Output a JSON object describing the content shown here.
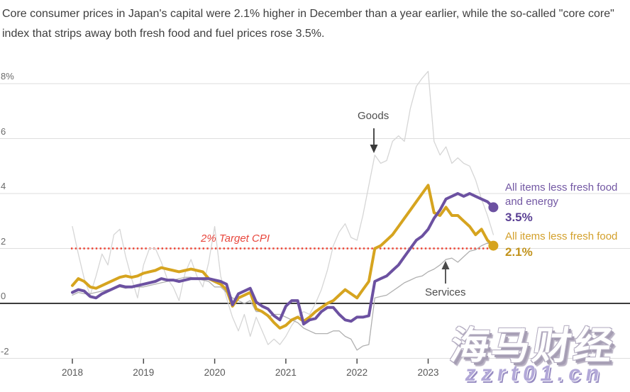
{
  "header": {
    "text": "Core consumer prices in Japan's capital were 2.1% higher in December than a year earlier, while the so-called \"core core\" index that strips away both fresh food and fuel prices rose 3.5%."
  },
  "chart_data": {
    "type": "line",
    "x_monthly_range": "2018-01 to 2023-12",
    "x_tick_labels": [
      "2018",
      "2019",
      "2020",
      "2021",
      "2022",
      "2023"
    ],
    "y_axis": {
      "ticks": [
        8,
        6,
        4,
        2,
        0,
        -2
      ],
      "tick_labels": [
        "8%",
        "6",
        "4",
        "2",
        "0",
        "-2"
      ],
      "unit": "%"
    },
    "ylim": [
      -2.7,
      8.6
    ],
    "grid": "horizontal",
    "colors": {
      "grid": "#dedede",
      "zero_line": "#3d3d3d",
      "tick": "#4a4a4a"
    },
    "target_line": {
      "label": "2% Target CPI",
      "value": 2,
      "color": "#ee4434"
    },
    "series": [
      {
        "name": "Goods",
        "color": "#d6d6d6",
        "width": 1.3,
        "end_dot": false,
        "values": [
          2.8,
          1.8,
          0.9,
          0.3,
          1.0,
          1.8,
          1.4,
          2.5,
          2.7,
          1.7,
          0.9,
          0.2,
          1.4,
          2.0,
          2.0,
          1.5,
          0.9,
          0.6,
          0.1,
          1.1,
          1.6,
          1.0,
          0.6,
          1.5,
          2.8,
          1.0,
          0.2,
          -0.5,
          -1.0,
          -0.4,
          -1.2,
          -0.5,
          -1.0,
          -1.5,
          -1.3,
          -1.5,
          -1.2,
          -0.8,
          -0.5,
          -0.3,
          -0.4,
          0.0,
          0.5,
          1.2,
          2.1,
          2.6,
          2.9,
          2.4,
          2.3,
          3.2,
          4.3,
          5.4,
          5.1,
          5.2,
          5.9,
          6.1,
          5.9,
          7.1,
          7.9,
          8.2,
          8.45,
          5.9,
          5.4,
          5.7,
          5.1,
          5.3,
          5.1,
          5.0,
          4.5,
          3.8,
          3.2,
          2.5
        ]
      },
      {
        "name": "Services",
        "color": "#b0b0b0",
        "width": 1.3,
        "end_dot": false,
        "values": [
          0.3,
          0.4,
          0.35,
          0.35,
          0.4,
          0.45,
          0.5,
          0.55,
          0.6,
          0.55,
          0.6,
          0.6,
          0.6,
          0.65,
          0.7,
          0.75,
          0.8,
          0.85,
          0.9,
          0.95,
          0.95,
          0.9,
          0.85,
          0.8,
          0.6,
          0.6,
          0.4,
          0.2,
          0.1,
          0.0,
          0.1,
          -0.3,
          -0.3,
          -0.5,
          -0.4,
          -0.4,
          -0.5,
          -0.6,
          -0.7,
          -0.9,
          -1.0,
          -1.1,
          -1.1,
          -1.1,
          -1.0,
          -1.0,
          -1.2,
          -1.3,
          -1.7,
          -1.55,
          -1.5,
          0.2,
          0.25,
          0.3,
          0.45,
          0.6,
          0.75,
          0.85,
          0.95,
          1.0,
          1.15,
          1.25,
          1.4,
          1.6,
          1.65,
          1.5,
          1.7,
          1.9,
          1.95,
          2.1,
          2.2,
          2.1
        ]
      },
      {
        "name": "All items less fresh food",
        "color": "#d6a41f",
        "width": 4,
        "end_dot": true,
        "end_value_label": "2.1%",
        "values": [
          0.65,
          0.9,
          0.8,
          0.6,
          0.55,
          0.65,
          0.75,
          0.85,
          0.95,
          1.0,
          0.95,
          1.0,
          1.1,
          1.15,
          1.2,
          1.3,
          1.25,
          1.2,
          1.15,
          1.2,
          1.25,
          1.2,
          1.15,
          0.9,
          0.8,
          0.7,
          0.5,
          -0.1,
          0.2,
          0.3,
          0.4,
          -0.2,
          -0.3,
          -0.45,
          -0.7,
          -0.9,
          -0.8,
          -0.6,
          -0.5,
          -0.65,
          -0.5,
          -0.3,
          -0.15,
          0.0,
          0.1,
          0.3,
          0.5,
          0.35,
          0.2,
          0.5,
          0.8,
          2.0,
          2.1,
          2.3,
          2.5,
          2.8,
          3.1,
          3.4,
          3.7,
          4.0,
          4.3,
          3.3,
          3.2,
          3.5,
          3.2,
          3.2,
          3.0,
          2.8,
          2.5,
          2.7,
          2.3,
          2.1
        ]
      },
      {
        "name": "All items less fresh food and energy",
        "color": "#6c51a1",
        "width": 4,
        "end_dot": true,
        "end_value_label": "3.5%",
        "values": [
          0.4,
          0.5,
          0.45,
          0.25,
          0.2,
          0.35,
          0.45,
          0.55,
          0.65,
          0.6,
          0.6,
          0.65,
          0.7,
          0.75,
          0.8,
          0.9,
          0.85,
          0.85,
          0.8,
          0.85,
          0.9,
          0.9,
          0.9,
          0.9,
          0.85,
          0.8,
          0.7,
          -0.05,
          0.35,
          0.45,
          0.55,
          0.05,
          -0.1,
          -0.2,
          -0.45,
          -0.6,
          -0.1,
          0.1,
          0.1,
          -0.75,
          -0.6,
          -0.55,
          -0.3,
          -0.15,
          -0.15,
          -0.4,
          -0.6,
          -0.65,
          -0.5,
          -0.5,
          -0.45,
          0.8,
          0.9,
          1.0,
          1.2,
          1.4,
          1.7,
          2.0,
          2.3,
          2.45,
          2.7,
          3.1,
          3.4,
          3.8,
          3.9,
          4.0,
          3.9,
          4.0,
          3.9,
          3.8,
          3.7,
          3.5
        ]
      }
    ],
    "annotations": [
      {
        "text": "Goods",
        "arrow": "down"
      },
      {
        "text": "Services",
        "arrow": "up"
      }
    ],
    "legend_position": "right-of-line-endpoints"
  },
  "annotations": {
    "goods": "Goods",
    "services": "Services"
  },
  "right_labels": {
    "purple": {
      "line1": "All items less fresh food",
      "line2": "and energy",
      "value": "3.5%"
    },
    "gold": {
      "line1": "All items less fresh food",
      "value": "2.1%"
    }
  },
  "watermark": {
    "line1": "海马财经",
    "line2": "zzrt01.cn"
  }
}
